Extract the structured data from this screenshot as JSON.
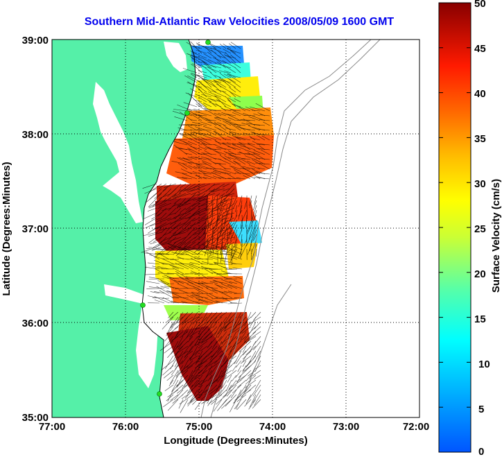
{
  "title": "Southern Mid-Atlantic Raw Velocities 2008/05/09 1600 GMT",
  "x_label": "Longitude (Degrees:Minutes)",
  "y_label": "Latitude (Degrees:Minutes)",
  "x_ticks": [
    "77:00",
    "76:00",
    "75:00",
    "74:00",
    "73:00",
    "72:00"
  ],
  "y_ticks": [
    "39:00",
    "38:00",
    "37:00",
    "36:00",
    "35:00"
  ],
  "colorbar": {
    "label": "Surface Velocity (cm/s)",
    "ticks": [
      "50",
      "45",
      "40",
      "35",
      "30",
      "25",
      "20",
      "15",
      "10",
      "5",
      "0"
    ],
    "range": [
      0,
      50
    ],
    "colormap": "jet"
  },
  "colors": {
    "land": "#55f0a8",
    "title": "#0000ee",
    "radar_site": "#22dd22",
    "bathymetry": "#888888"
  },
  "map_extent": {
    "lon": [
      -77,
      -72
    ],
    "lat": [
      35,
      39
    ]
  }
}
